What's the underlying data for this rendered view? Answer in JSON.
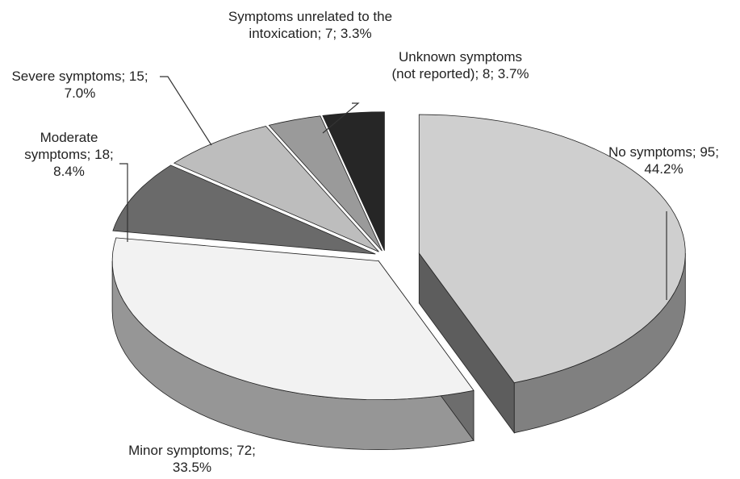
{
  "chart_data": {
    "type": "pie3d",
    "labels": [
      "No symptoms; 95; 44.2%",
      "Minor symptoms; 72; 33.5%",
      "Moderate symptoms; 18; 8.4%",
      "Severe symptoms; 15; 7.0%",
      "Symptoms unrelated to the intoxication; 7; 3.3%",
      "Unknown symptoms (not reported); 8; 3.7%"
    ],
    "values": [
      95,
      72,
      18,
      15,
      7,
      8
    ],
    "colors": [
      "#cfcfcf",
      "#f2f2f2",
      "#6a6a6a",
      "#bdbdbd",
      "#9a9a9a",
      "#262626"
    ]
  }
}
